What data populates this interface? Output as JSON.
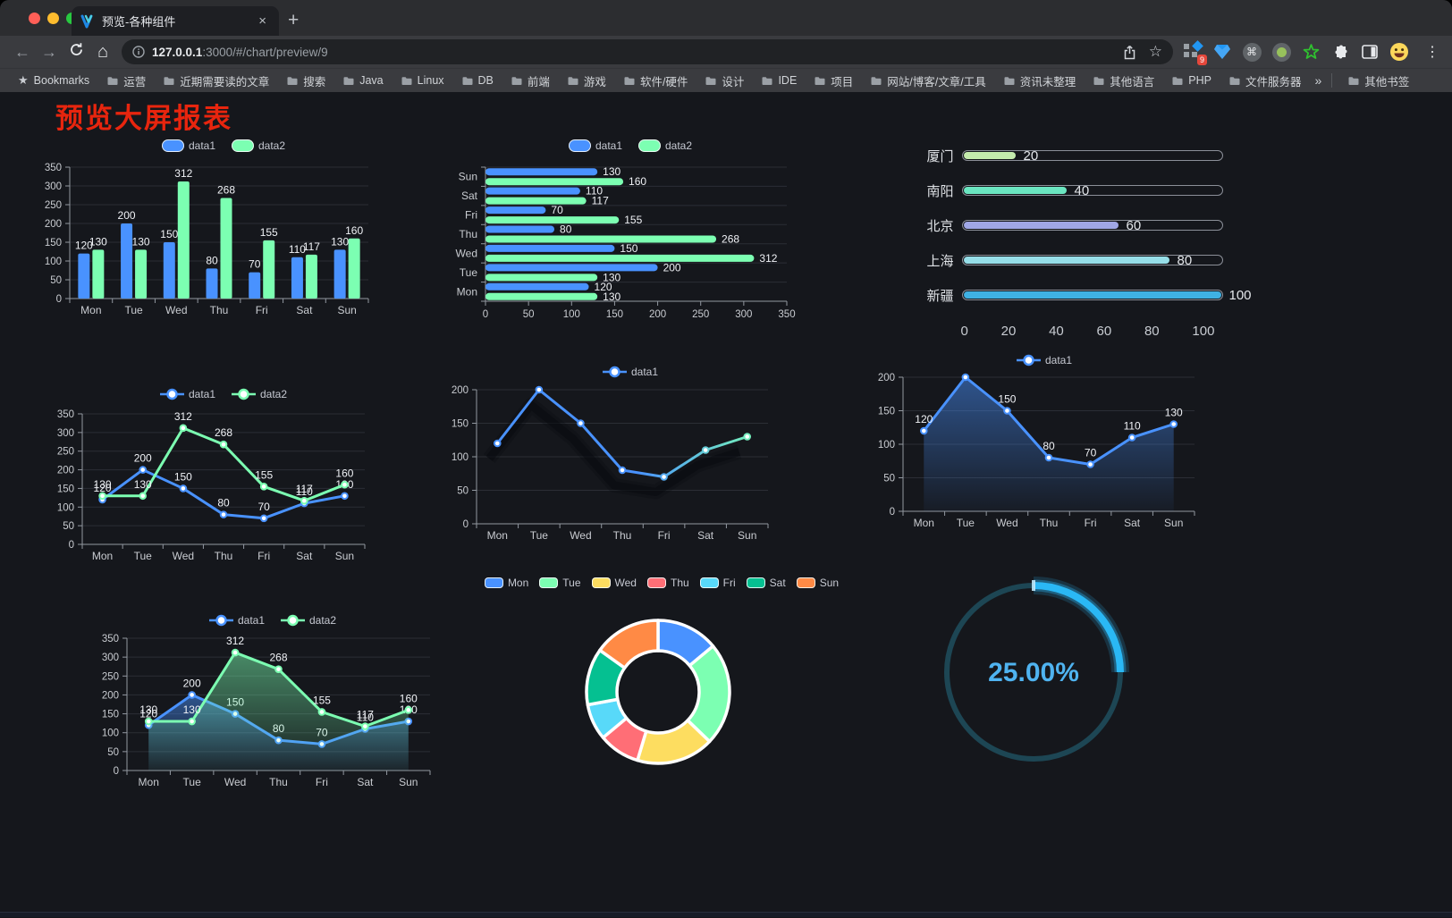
{
  "browser": {
    "tab_title": "预览-各种组件",
    "tab_close": "×",
    "new_tab": "+",
    "url": {
      "host": "127.0.0.1",
      "rest": ":3000/#/chart/preview/9"
    },
    "extension_badge": "9",
    "menu_dots": "⋮",
    "bookmarks_bar": {
      "star": "★",
      "label": "Bookmarks",
      "items": [
        "运营",
        "近期需要读的文章",
        "搜索",
        "Java",
        "Linux",
        "DB",
        "前端",
        "游戏",
        "软件/硬件",
        "设计",
        "IDE",
        "项目",
        "网站/博客/文章/工具",
        "资讯未整理",
        "其他语言",
        "PHP",
        "文件服务器"
      ],
      "overflow_chevron": "»",
      "other_bookmarks": "其他书签"
    }
  },
  "page": {
    "title": "预览大屏报表",
    "title_color": "#e8250e"
  },
  "palette": {
    "data1": "#4992ff",
    "data2": "#7cffb2",
    "axis_label": "#c9ccd1",
    "grid_line": "#2b2e35",
    "axis_line": "#9298a0",
    "value_label": "#f0f2f6"
  },
  "chart_data": [
    {
      "id": "grouped-bar",
      "type": "bar",
      "categories": [
        "Mon",
        "Tue",
        "Wed",
        "Thu",
        "Fri",
        "Sat",
        "Sun"
      ],
      "series": [
        {
          "name": "data1",
          "color": "#4992ff",
          "values": [
            120,
            200,
            150,
            80,
            70,
            110,
            130
          ]
        },
        {
          "name": "data2",
          "color": "#7cffb2",
          "values": [
            130,
            130,
            312,
            268,
            155,
            117,
            160
          ]
        }
      ],
      "ylim": [
        0,
        350
      ],
      "ytick_step": 50,
      "legend": [
        "data1",
        "data2"
      ]
    },
    {
      "id": "horizontal-bar",
      "type": "bar",
      "orientation": "horizontal",
      "categories": [
        "Mon",
        "Tue",
        "Wed",
        "Thu",
        "Fri",
        "Sat",
        "Sun"
      ],
      "series": [
        {
          "name": "data1",
          "color": "#4992ff",
          "values": [
            120,
            200,
            150,
            80,
            70,
            110,
            130
          ]
        },
        {
          "name": "data2",
          "color": "#7cffb2",
          "values": [
            130,
            130,
            312,
            268,
            155,
            117,
            160
          ]
        }
      ],
      "xlim": [
        0,
        350
      ],
      "xtick_step": 50,
      "legend": [
        "data1",
        "data2"
      ]
    },
    {
      "id": "capsule-progress",
      "type": "bar",
      "subtype": "progress",
      "categories": [
        "厦门",
        "南阳",
        "北京",
        "上海",
        "新疆"
      ],
      "values": [
        20,
        40,
        60,
        80,
        100
      ],
      "colors": [
        "#c4ebad",
        "#6be6c1",
        "#a0a7e6",
        "#96dee8",
        "#3fb1e3"
      ],
      "xticks": [
        0,
        20,
        40,
        60,
        80,
        100
      ],
      "xlim": [
        0,
        100
      ]
    },
    {
      "id": "line-dual",
      "type": "line",
      "categories": [
        "Mon",
        "Tue",
        "Wed",
        "Thu",
        "Fri",
        "Sat",
        "Sun"
      ],
      "series": [
        {
          "name": "data1",
          "color": "#4992ff",
          "values": [
            120,
            200,
            150,
            80,
            70,
            110,
            130
          ]
        },
        {
          "name": "data2",
          "color": "#7cffb2",
          "values": [
            130,
            130,
            312,
            268,
            155,
            117,
            160
          ]
        }
      ],
      "ylim": [
        0,
        350
      ],
      "ytick_step": 50,
      "legend": [
        "data1",
        "data2"
      ]
    },
    {
      "id": "line-gradient",
      "type": "line",
      "categories": [
        "Mon",
        "Tue",
        "Wed",
        "Thu",
        "Fri",
        "Sat",
        "Sun"
      ],
      "series": [
        {
          "name": "data1",
          "color": "#4992ff",
          "values": [
            120,
            200,
            150,
            80,
            70,
            110,
            130
          ]
        }
      ],
      "line_gradient": [
        "#4992ff",
        "#7cffb2"
      ],
      "ylim": [
        0,
        200
      ],
      "ytick_step": 50,
      "legend": [
        "data1"
      ]
    },
    {
      "id": "area-single",
      "type": "area",
      "categories": [
        "Mon",
        "Tue",
        "Wed",
        "Thu",
        "Fri",
        "Sat",
        "Sun"
      ],
      "series": [
        {
          "name": "data1",
          "color": "#4992ff",
          "values": [
            120,
            200,
            150,
            80,
            70,
            110,
            130
          ]
        }
      ],
      "ylim": [
        0,
        200
      ],
      "ytick_step": 50,
      "legend": [
        "data1"
      ]
    },
    {
      "id": "area-dual",
      "type": "area",
      "categories": [
        "Mon",
        "Tue",
        "Wed",
        "Thu",
        "Fri",
        "Sat",
        "Sun"
      ],
      "series": [
        {
          "name": "data1",
          "color": "#4992ff",
          "values": [
            120,
            200,
            150,
            80,
            70,
            110,
            130
          ]
        },
        {
          "name": "data2",
          "color": "#7cffb2",
          "values": [
            130,
            130,
            312,
            268,
            155,
            117,
            160
          ]
        }
      ],
      "ylim": [
        0,
        350
      ],
      "ytick_step": 50,
      "legend": [
        "data1",
        "data2"
      ]
    },
    {
      "id": "donut",
      "type": "pie",
      "categories": [
        "Mon",
        "Tue",
        "Wed",
        "Thu",
        "Fri",
        "Sat",
        "Sun"
      ],
      "values": [
        120,
        200,
        150,
        80,
        70,
        110,
        130
      ],
      "colors": [
        "#4992ff",
        "#7cffb2",
        "#fddd60",
        "#ff6e76",
        "#58d9f9",
        "#05c091",
        "#ff8a45"
      ],
      "legend": [
        "Mon",
        "Tue",
        "Wed",
        "Thu",
        "Fri",
        "Sat",
        "Sun"
      ]
    },
    {
      "id": "gauge",
      "type": "gauge",
      "percent": 25,
      "label": "25.00%",
      "arc_color": "#2ab8f5",
      "track_color": "#1d4654",
      "text_color": "#4fb3f0"
    }
  ]
}
